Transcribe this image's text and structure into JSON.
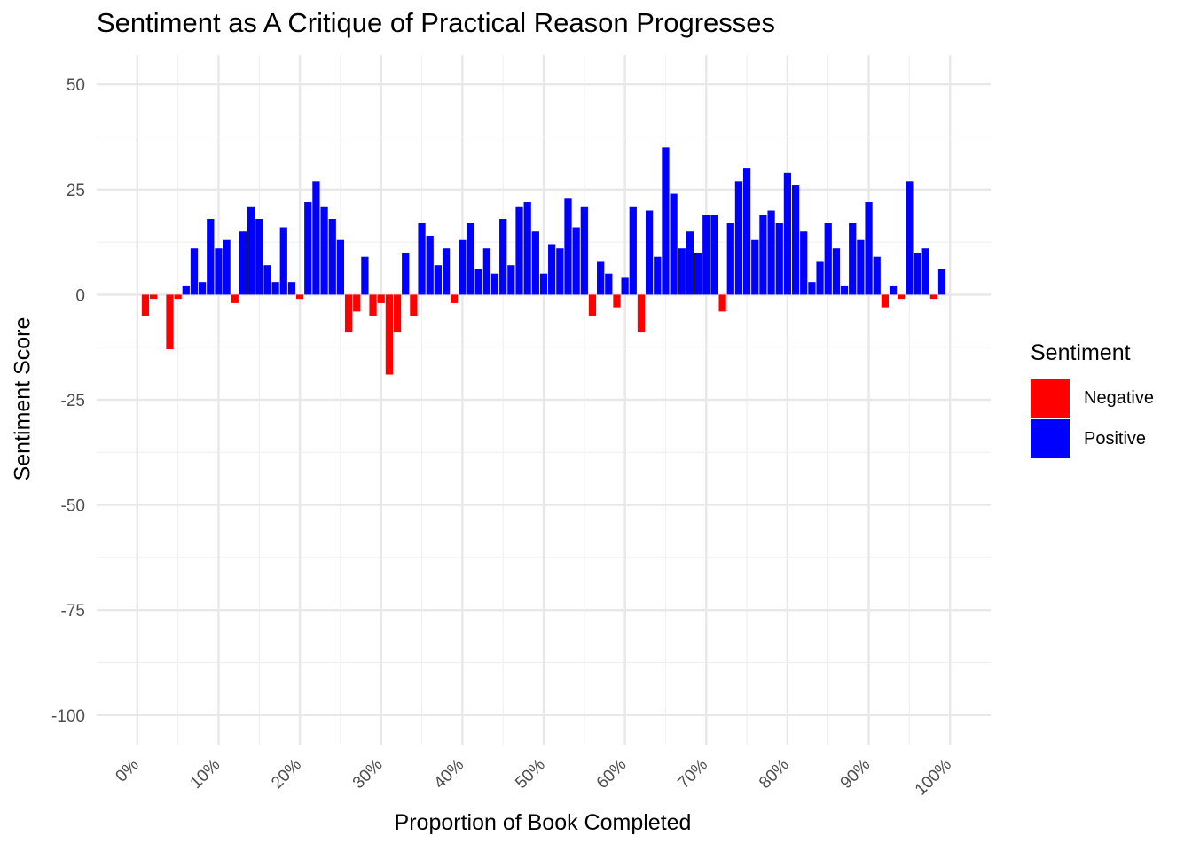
{
  "chart_data": {
    "type": "bar",
    "title": "Sentiment as A Critique of Practical Reason Progresses",
    "xlabel": "Proportion of Book Completed",
    "ylabel": "Sentiment Score",
    "xlim": [
      -0.05,
      1.05
    ],
    "ylim": [
      -107,
      57
    ],
    "x_tick_values": [
      0,
      0.1,
      0.2,
      0.3,
      0.4,
      0.5,
      0.6,
      0.7,
      0.8,
      0.9,
      1.0
    ],
    "x_tick_labels": [
      "0%",
      "10%",
      "20%",
      "30%",
      "40%",
      "50%",
      "60%",
      "70%",
      "80%",
      "90%",
      "100%"
    ],
    "y_tick_values": [
      50,
      25,
      0,
      -25,
      -50,
      -75,
      -100
    ],
    "y_tick_labels": [
      "50",
      "25",
      "0",
      "-25",
      "-50",
      "-75",
      "-100"
    ],
    "grid": true,
    "legend_position": "right",
    "legend": {
      "title": "Sentiment",
      "entries": [
        {
          "label": "Negative",
          "color": "#ff0000"
        },
        {
          "label": "Positive",
          "color": "#0000ff"
        }
      ]
    },
    "x": [
      0.01,
      0.02,
      0.03,
      0.04,
      0.05,
      0.06,
      0.07,
      0.08,
      0.09,
      0.1,
      0.11,
      0.12,
      0.13,
      0.14,
      0.15,
      0.16,
      0.17,
      0.18,
      0.19,
      0.2,
      0.21,
      0.22,
      0.23,
      0.24,
      0.25,
      0.26,
      0.27,
      0.28,
      0.29,
      0.3,
      0.31,
      0.32,
      0.33,
      0.34,
      0.35,
      0.36,
      0.37,
      0.38,
      0.39,
      0.4,
      0.41,
      0.42,
      0.43,
      0.44,
      0.45,
      0.46,
      0.47,
      0.48,
      0.49,
      0.5,
      0.51,
      0.52,
      0.53,
      0.54,
      0.55,
      0.56,
      0.57,
      0.58,
      0.59,
      0.6,
      0.61,
      0.62,
      0.63,
      0.64,
      0.65,
      0.66,
      0.67,
      0.68,
      0.69,
      0.7,
      0.71,
      0.72,
      0.73,
      0.74,
      0.75,
      0.76,
      0.77,
      0.78,
      0.79,
      0.8,
      0.81,
      0.82,
      0.83,
      0.84,
      0.85,
      0.86,
      0.87,
      0.88,
      0.89,
      0.9,
      0.91,
      0.92,
      0.93,
      0.94,
      0.95,
      0.96,
      0.97,
      0.98,
      0.99
    ],
    "values": [
      -5,
      -1,
      0,
      -13,
      -1,
      2,
      11,
      3,
      18,
      11,
      13,
      -2,
      15,
      21,
      18,
      7,
      3,
      16,
      3,
      -1,
      22,
      27,
      21,
      18,
      13,
      -9,
      -4,
      9,
      -5,
      -2,
      -19,
      -9,
      10,
      -5,
      17,
      14,
      7,
      11,
      -2,
      13,
      17,
      6,
      11,
      5,
      18,
      7,
      21,
      22,
      15,
      5,
      12,
      11,
      23,
      16,
      21,
      -5,
      8,
      5,
      -3,
      4,
      21,
      -9,
      20,
      9,
      35,
      24,
      11,
      15,
      10,
      19,
      19,
      -4,
      17,
      27,
      30,
      13,
      19,
      20,
      17,
      29,
      26,
      15,
      3,
      8,
      17,
      11,
      2,
      17,
      13,
      22,
      9,
      -3,
      2,
      -1,
      27,
      10,
      11,
      -1,
      6
    ],
    "bar_width": 0.009,
    "positive_color": "#0000ff",
    "negative_color": "#ff0000"
  }
}
